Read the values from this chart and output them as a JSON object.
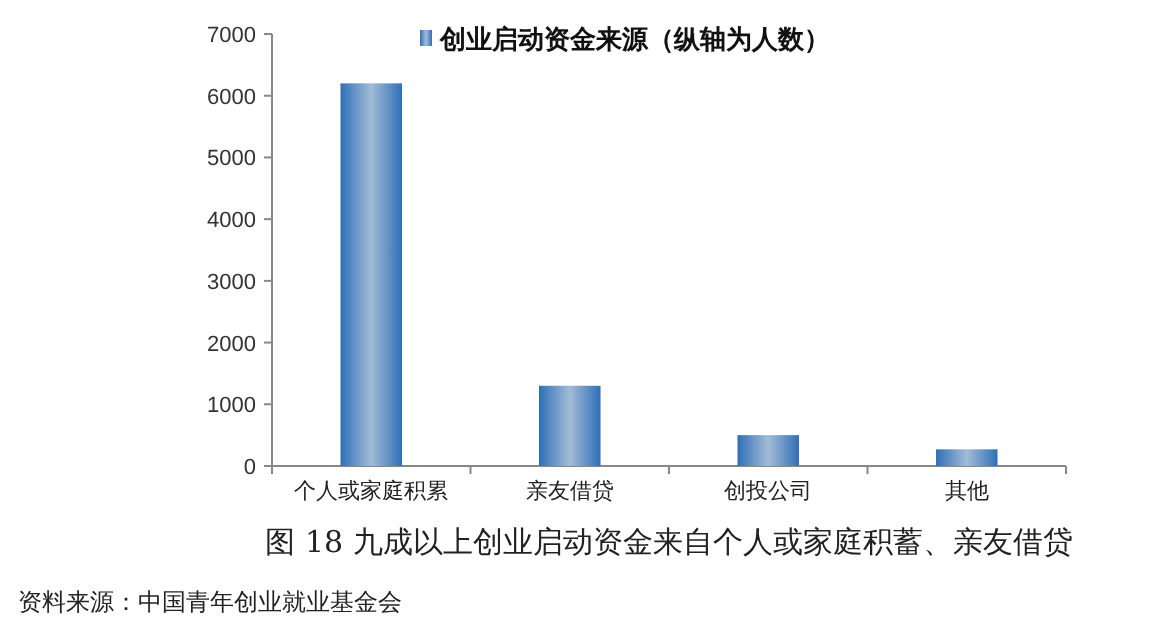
{
  "chart_data": {
    "type": "bar",
    "title": "图 18  九成以上创业启动资金来自个人或家庭积蓄、亲友借贷",
    "categories": [
      "个人或家庭积累",
      "亲友借贷",
      "创投公司",
      "其他"
    ],
    "series": [
      {
        "name": "创业启动资金来源（纵轴为人数）",
        "color": "#2f6fb8",
        "values": [
          6200,
          1300,
          500,
          270
        ]
      }
    ],
    "ylim": [
      0,
      7000
    ],
    "yticks": [
      0,
      1000,
      2000,
      3000,
      4000,
      5000,
      6000,
      7000
    ],
    "grid": false,
    "legend": "top",
    "annotations": [
      "资料来源：中国青年创业就业基金会"
    ]
  }
}
